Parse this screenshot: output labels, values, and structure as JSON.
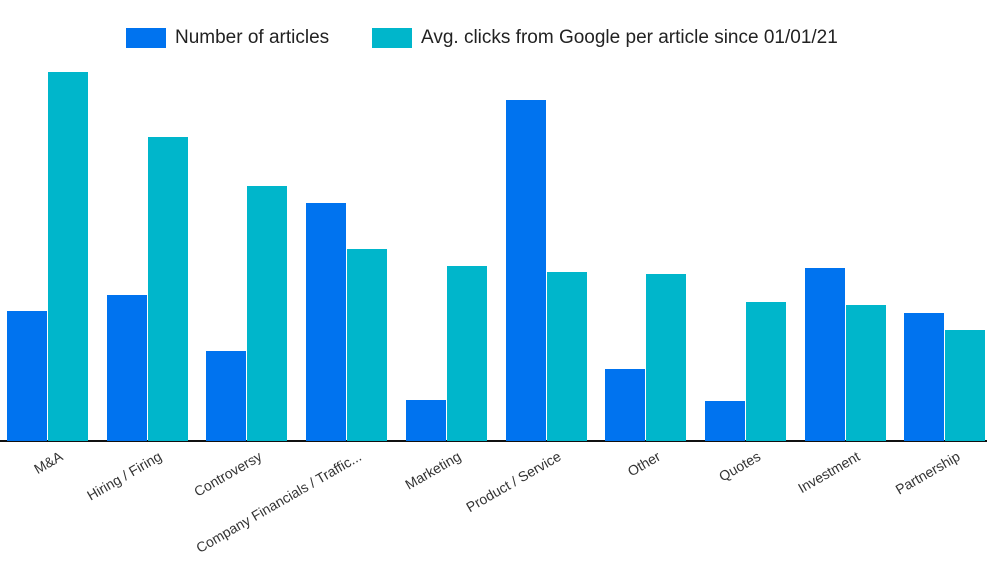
{
  "legend": {
    "items": [
      {
        "label": "Number of articles",
        "color": "#0073ef"
      },
      {
        "label": "Avg. clicks from Google per article since 01/01/21",
        "color": "#00b6cb"
      }
    ]
  },
  "chart_data": {
    "type": "bar",
    "title": "",
    "xlabel": "",
    "ylabel": "",
    "grid": false,
    "legend_position": "top",
    "axes_note": "No y-axis ticks shown; values are relative bar heights in pixels above baseline (each series appears scaled independently).",
    "categories": [
      "M&A",
      "Hiring / Firing",
      "Controversy",
      "Company Financials / Traffic...",
      "Marketing",
      "Product / Service",
      "Other",
      "Quotes",
      "Investment",
      "Partnership"
    ],
    "series": [
      {
        "name": "Number of articles",
        "color": "#0073ef",
        "values": [
          130,
          146,
          90,
          238,
          41,
          341,
          72,
          40,
          173,
          128
        ]
      },
      {
        "name": "Avg. clicks from Google per article since 01/01/21",
        "color": "#00b6cb",
        "values": [
          369,
          304,
          255,
          192,
          175,
          169,
          167,
          139,
          136,
          111
        ]
      }
    ],
    "ylim": [
      0,
      369
    ]
  }
}
